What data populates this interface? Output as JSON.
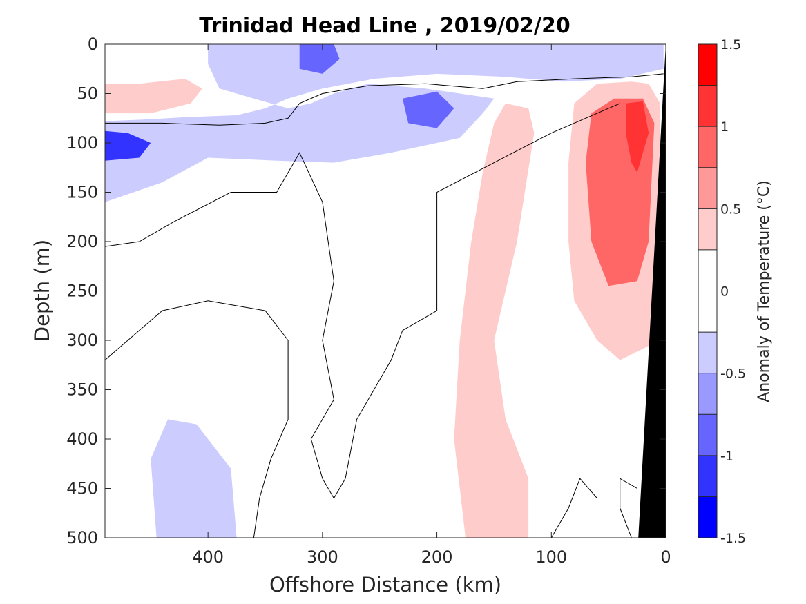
{
  "chart_data": {
    "type": "heatmap",
    "title": "Trinidad Head Line , 2019/02/20",
    "xlabel": "Offshore Distance (km)",
    "ylabel": "Depth (m)",
    "x_reversed": true,
    "y_reversed": true,
    "xlim": [
      0,
      490
    ],
    "ylim": [
      0,
      500
    ],
    "x_ticks": [
      "400",
      "300",
      "200",
      "100",
      "0"
    ],
    "y_ticks": [
      "0",
      "50",
      "100",
      "150",
      "200",
      "250",
      "300",
      "350",
      "400",
      "450",
      "500"
    ],
    "colorbar": {
      "label": "Anomaly of Temperature (°C)",
      "range": [
        -1.5,
        1.5
      ],
      "levels": [
        -1.5,
        -1.25,
        -1.0,
        -0.75,
        -0.5,
        -0.25,
        0.25,
        0.5,
        0.75,
        1.0,
        1.25,
        1.5
      ],
      "tick_labels": [
        "1.5",
        "1",
        "0.5",
        "0",
        "-0.5",
        "-1",
        "-1.5"
      ],
      "bands": [
        {
          "range": [
            1.25,
            1.5
          ],
          "color": "#ff0000"
        },
        {
          "range": [
            1.0,
            1.25
          ],
          "color": "#ff3333"
        },
        {
          "range": [
            0.75,
            1.0
          ],
          "color": "#ff6666"
        },
        {
          "range": [
            0.5,
            0.75
          ],
          "color": "#ff9999"
        },
        {
          "range": [
            0.25,
            0.5
          ],
          "color": "#ffcccc"
        },
        {
          "range": [
            -0.25,
            0.25
          ],
          "color": "#ffffff"
        },
        {
          "range": [
            -0.5,
            -0.25
          ],
          "color": "#ccccff"
        },
        {
          "range": [
            -0.75,
            -0.5
          ],
          "color": "#9999ff"
        },
        {
          "range": [
            -1.0,
            -0.75
          ],
          "color": "#6666ff"
        },
        {
          "range": [
            -1.25,
            -1.0
          ],
          "color": "#3333ff"
        },
        {
          "range": [
            -1.5,
            -1.25
          ],
          "color": "#0000ff"
        }
      ]
    },
    "regions": [
      {
        "name": "surface-cold-layer",
        "sign": "negative",
        "level": -0.25,
        "color": "#ccccff",
        "points": [
          [
            400,
            0
          ],
          [
            310,
            0
          ],
          [
            190,
            0
          ],
          [
            60,
            0
          ],
          [
            2,
            0
          ],
          [
            2,
            25
          ],
          [
            40,
            35
          ],
          [
            90,
            38
          ],
          [
            140,
            33
          ],
          [
            200,
            30
          ],
          [
            255,
            35
          ],
          [
            300,
            45
          ],
          [
            330,
            55
          ],
          [
            350,
            65
          ],
          [
            375,
            72
          ],
          [
            420,
            74
          ],
          [
            450,
            76
          ],
          [
            490,
            78
          ],
          [
            490,
            160
          ],
          [
            440,
            140
          ],
          [
            400,
            115
          ],
          [
            340,
            118
          ],
          [
            290,
            120
          ],
          [
            240,
            110
          ],
          [
            180,
            95
          ],
          [
            160,
            70
          ],
          [
            150,
            55
          ],
          [
            210,
            45
          ],
          [
            260,
            40
          ],
          [
            290,
            50
          ],
          [
            310,
            60
          ],
          [
            330,
            65
          ],
          [
            360,
            55
          ],
          [
            390,
            45
          ],
          [
            400,
            20
          ]
        ]
      },
      {
        "name": "cold-core-surface-300km",
        "sign": "negative",
        "level": -0.75,
        "color": "#6666ff",
        "points": [
          [
            320,
            0
          ],
          [
            290,
            0
          ],
          [
            285,
            15
          ],
          [
            300,
            30
          ],
          [
            320,
            25
          ]
        ]
      },
      {
        "name": "cold-core-deep-470km",
        "sign": "negative",
        "level": -1.0,
        "color": "#3333ff",
        "points": [
          [
            490,
            88
          ],
          [
            470,
            90
          ],
          [
            450,
            100
          ],
          [
            460,
            115
          ],
          [
            490,
            118
          ]
        ]
      },
      {
        "name": "cold-core-200km",
        "sign": "negative",
        "level": -0.75,
        "color": "#6666ff",
        "points": [
          [
            230,
            55
          ],
          [
            200,
            48
          ],
          [
            185,
            65
          ],
          [
            200,
            85
          ],
          [
            225,
            80
          ]
        ]
      },
      {
        "name": "surface-warm-patch-west",
        "sign": "positive",
        "level": 0.25,
        "color": "#ffcccc",
        "points": [
          [
            490,
            40
          ],
          [
            460,
            40
          ],
          [
            420,
            35
          ],
          [
            405,
            45
          ],
          [
            415,
            60
          ],
          [
            450,
            70
          ],
          [
            490,
            70
          ]
        ]
      },
      {
        "name": "deep-cold-patch-400km",
        "sign": "negative",
        "level": -0.25,
        "color": "#ccccff",
        "points": [
          [
            445,
            500
          ],
          [
            450,
            420
          ],
          [
            435,
            380
          ],
          [
            410,
            385
          ],
          [
            380,
            430
          ],
          [
            375,
            500
          ]
        ]
      },
      {
        "name": "warm-tongue-160km",
        "sign": "positive",
        "level": 0.25,
        "color": "#ffcccc",
        "points": [
          [
            140,
            60
          ],
          [
            120,
            65
          ],
          [
            115,
            90
          ],
          [
            130,
            200
          ],
          [
            150,
            300
          ],
          [
            140,
            380
          ],
          [
            120,
            440
          ],
          [
            120,
            500
          ],
          [
            175,
            500
          ],
          [
            185,
            400
          ],
          [
            180,
            300
          ],
          [
            170,
            200
          ],
          [
            160,
            130
          ],
          [
            150,
            80
          ]
        ]
      },
      {
        "name": "warm-shelf-body",
        "sign": "positive",
        "level": 0.25,
        "color": "#ffcccc",
        "points": [
          [
            80,
            60
          ],
          [
            60,
            40
          ],
          [
            30,
            38
          ],
          [
            15,
            40
          ],
          [
            5,
            60
          ],
          [
            5,
            300
          ],
          [
            40,
            320
          ],
          [
            60,
            300
          ],
          [
            80,
            260
          ],
          [
            85,
            200
          ],
          [
            85,
            120
          ]
        ]
      },
      {
        "name": "warm-shelf-core",
        "sign": "positive",
        "level": 0.75,
        "color": "#ff6666",
        "points": [
          [
            65,
            70
          ],
          [
            45,
            55
          ],
          [
            20,
            55
          ],
          [
            10,
            80
          ],
          [
            15,
            200
          ],
          [
            25,
            240
          ],
          [
            50,
            245
          ],
          [
            65,
            200
          ],
          [
            70,
            120
          ]
        ]
      },
      {
        "name": "warm-shelf-peak",
        "sign": "positive",
        "level": 1.25,
        "color": "#ff3333",
        "points": [
          [
            35,
            60
          ],
          [
            20,
            58
          ],
          [
            15,
            90
          ],
          [
            25,
            130
          ],
          [
            30,
            120
          ],
          [
            35,
            90
          ]
        ]
      }
    ],
    "zero_contours": [
      [
        [
          490,
          80
        ],
        [
          440,
          80
        ],
        [
          390,
          82
        ],
        [
          350,
          80
        ],
        [
          330,
          75
        ],
        [
          320,
          60
        ],
        [
          300,
          50
        ],
        [
          260,
          42
        ],
        [
          210,
          40
        ],
        [
          160,
          45
        ],
        [
          130,
          38
        ],
        [
          80,
          35
        ],
        [
          30,
          33
        ],
        [
          2,
          30
        ]
      ],
      [
        [
          490,
          205
        ],
        [
          460,
          200
        ],
        [
          430,
          180
        ],
        [
          380,
          150
        ],
        [
          340,
          150
        ],
        [
          320,
          110
        ],
        [
          300,
          160
        ],
        [
          290,
          240
        ],
        [
          300,
          300
        ],
        [
          290,
          360
        ],
        [
          310,
          400
        ],
        [
          300,
          440
        ],
        [
          290,
          460
        ],
        [
          280,
          440
        ],
        [
          270,
          380
        ],
        [
          240,
          320
        ],
        [
          230,
          290
        ],
        [
          200,
          270
        ],
        [
          200,
          150
        ],
        [
          150,
          120
        ],
        [
          100,
          90
        ],
        [
          40,
          60
        ]
      ],
      [
        [
          490,
          320
        ],
        [
          470,
          300
        ],
        [
          440,
          270
        ],
        [
          400,
          260
        ],
        [
          350,
          270
        ],
        [
          330,
          300
        ],
        [
          330,
          380
        ],
        [
          345,
          420
        ],
        [
          355,
          460
        ],
        [
          360,
          500
        ]
      ],
      [
        [
          60,
          460
        ],
        [
          75,
          440
        ],
        [
          85,
          470
        ],
        [
          100,
          500
        ]
      ],
      [
        [
          25,
          450
        ],
        [
          40,
          440
        ],
        [
          40,
          470
        ],
        [
          30,
          500
        ]
      ]
    ],
    "shelf_mask": {
      "color": "#000000",
      "points": [
        [
          0,
          0
        ],
        [
          0,
          500
        ],
        [
          24,
          500
        ]
      ]
    }
  }
}
